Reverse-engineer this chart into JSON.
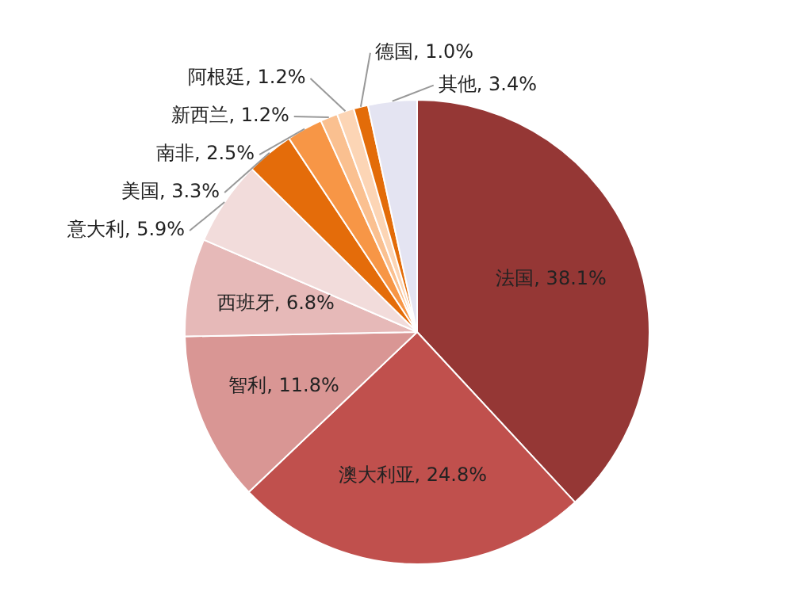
{
  "chart_data": {
    "type": "pie",
    "categories": [
      "法国",
      "澳大利亚",
      "智利",
      "西班牙",
      "意大利",
      "美国",
      "南非",
      "新西兰",
      "阿根廷",
      "德国",
      "其他"
    ],
    "values": [
      38.1,
      24.8,
      11.8,
      6.8,
      5.9,
      3.3,
      2.5,
      1.2,
      1.2,
      1.0,
      3.4
    ],
    "colors": [
      "#953735",
      "#c0504d",
      "#d99694",
      "#e6b9b8",
      "#f2dcdb",
      "#e46c0a",
      "#f79646",
      "#fac090",
      "#fcd5b5",
      "#e36c09",
      "#e4e4f2"
    ],
    "value_labels": [
      ", 38.1%",
      ", 24.8%",
      ", 11.8%",
      ", 6.8%",
      ", 5.9%",
      ", 3.3%",
      ", 2.5%",
      ", 1.2%",
      ", 1.2%",
      ", 1.0%",
      ", 3.4%"
    ],
    "legend": false
  }
}
